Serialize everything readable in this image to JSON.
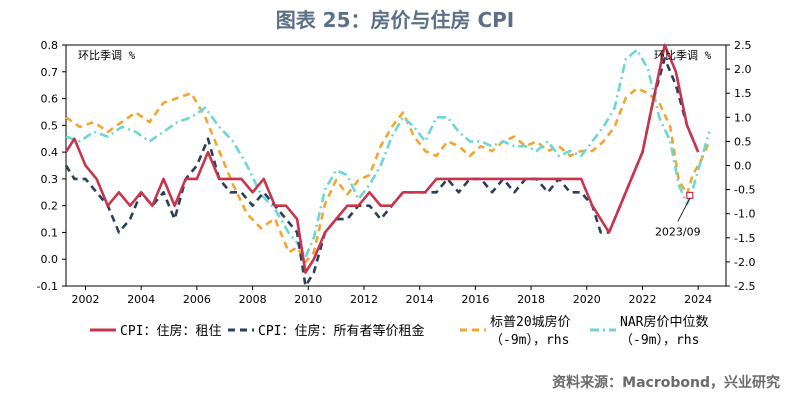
{
  "figure": {
    "title": "图表 25：房价与住房 CPI",
    "source": "资料来源：Macrobond，兴业研究",
    "colors": {
      "rent": "#c8354b",
      "owner_rent": "#2b3f5c",
      "case_shiller": "#f0a630",
      "nar": "#6ed6d6"
    }
  },
  "chart_data": {
    "type": "line",
    "title": "图表 25：房价与住房 CPI",
    "left_axis": {
      "label": "环比季调 %",
      "range": [
        -0.1,
        0.8
      ],
      "ticks": [
        "0.8",
        "0.7",
        "0.6",
        "0.5",
        "0.4",
        "0.3",
        "0.2",
        "0.1",
        "0.0",
        "-0.1"
      ]
    },
    "right_axis": {
      "label": "环比季调 %",
      "range": [
        -2.5,
        2.5
      ],
      "ticks": [
        "2.5",
        "2.0",
        "1.5",
        "1.0",
        "0.5",
        "0.0",
        "-0.5",
        "-1.0",
        "-1.5",
        "-2.0",
        "-2.5"
      ]
    },
    "x_axis": {
      "range": [
        2001.3,
        2025.0
      ],
      "ticks": [
        "2002",
        "2004",
        "2006",
        "2008",
        "2010",
        "2012",
        "2014",
        "2016",
        "2018",
        "2020",
        "2022",
        "2024"
      ]
    },
    "grid": false,
    "legend": "bottom",
    "annotation": {
      "text": "2023/09",
      "x": 2023.7,
      "y": -0.62,
      "axis": "right"
    },
    "series": [
      {
        "name": "CPI：住房：租住",
        "axis": "left",
        "style": "solid",
        "x": [
          2001.3,
          2001.6,
          2002.0,
          2002.4,
          2002.8,
          2003.2,
          2003.6,
          2004.0,
          2004.4,
          2004.8,
          2005.2,
          2005.6,
          2006.0,
          2006.4,
          2006.8,
          2007.2,
          2007.6,
          2008.0,
          2008.4,
          2008.8,
          2009.2,
          2009.6,
          2009.9,
          2010.2,
          2010.6,
          2011.0,
          2011.4,
          2011.8,
          2012.2,
          2012.6,
          2013.0,
          2013.4,
          2013.8,
          2014.2,
          2014.6,
          2015.0,
          2015.4,
          2015.8,
          2016.2,
          2016.6,
          2017.0,
          2017.4,
          2017.8,
          2018.2,
          2018.6,
          2019.0,
          2019.4,
          2019.8,
          2020.2,
          2020.5,
          2020.8,
          2021.2,
          2021.6,
          2022.0,
          2022.4,
          2022.8,
          2023.2,
          2023.6,
          2024.0
        ],
        "y": [
          0.4,
          0.45,
          0.35,
          0.3,
          0.2,
          0.25,
          0.2,
          0.25,
          0.2,
          0.3,
          0.2,
          0.3,
          0.3,
          0.4,
          0.3,
          0.3,
          0.3,
          0.25,
          0.3,
          0.2,
          0.2,
          0.15,
          -0.05,
          0.0,
          0.1,
          0.15,
          0.2,
          0.2,
          0.25,
          0.2,
          0.2,
          0.25,
          0.25,
          0.25,
          0.3,
          0.3,
          0.3,
          0.3,
          0.3,
          0.3,
          0.3,
          0.3,
          0.3,
          0.3,
          0.3,
          0.3,
          0.3,
          0.3,
          0.2,
          0.15,
          0.1,
          0.2,
          0.3,
          0.4,
          0.6,
          0.8,
          0.7,
          0.5,
          0.4
        ]
      },
      {
        "name": "CPI：住房：所有者等价租金",
        "axis": "left",
        "style": "dashed",
        "x": [
          2001.3,
          2001.6,
          2002.0,
          2002.4,
          2002.8,
          2003.2,
          2003.6,
          2004.0,
          2004.4,
          2004.8,
          2005.2,
          2005.6,
          2006.0,
          2006.4,
          2006.8,
          2007.2,
          2007.6,
          2008.0,
          2008.4,
          2008.8,
          2009.2,
          2009.6,
          2009.9,
          2010.2,
          2010.6,
          2011.0,
          2011.4,
          2011.8,
          2012.2,
          2012.6,
          2013.0,
          2013.4,
          2013.8,
          2014.2,
          2014.6,
          2015.0,
          2015.4,
          2015.8,
          2016.2,
          2016.6,
          2017.0,
          2017.4,
          2017.8,
          2018.2,
          2018.6,
          2019.0,
          2019.4,
          2019.8,
          2020.2,
          2020.5,
          2020.8,
          2021.2,
          2021.6,
          2022.0,
          2022.4,
          2022.8,
          2023.2,
          2023.6,
          2024.0
        ],
        "y": [
          0.35,
          0.3,
          0.3,
          0.25,
          0.2,
          0.1,
          0.15,
          0.25,
          0.2,
          0.25,
          0.15,
          0.3,
          0.35,
          0.45,
          0.3,
          0.25,
          0.25,
          0.2,
          0.25,
          0.2,
          0.15,
          0.1,
          -0.1,
          -0.05,
          0.1,
          0.15,
          0.15,
          0.2,
          0.2,
          0.15,
          0.2,
          0.25,
          0.25,
          0.25,
          0.25,
          0.3,
          0.25,
          0.3,
          0.3,
          0.25,
          0.3,
          0.25,
          0.3,
          0.3,
          0.25,
          0.3,
          0.25,
          0.25,
          0.2,
          0.1,
          0.1,
          0.2,
          0.3,
          0.4,
          0.6,
          0.75,
          0.65,
          0.5,
          0.4
        ]
      },
      {
        "name": "标普20城房价（-9m），rhs",
        "axis": "right",
        "style": "dashed",
        "x": [
          2001.3,
          2001.8,
          2002.3,
          2002.8,
          2003.3,
          2003.8,
          2004.3,
          2004.8,
          2005.3,
          2005.8,
          2006.3,
          2006.8,
          2007.3,
          2007.8,
          2008.3,
          2008.8,
          2009.3,
          2009.6,
          2009.9,
          2010.2,
          2010.6,
          2011.0,
          2011.4,
          2011.8,
          2012.2,
          2012.6,
          2013.0,
          2013.4,
          2013.8,
          2014.2,
          2014.6,
          2015.0,
          2015.4,
          2015.8,
          2016.2,
          2016.6,
          2017.0,
          2017.4,
          2017.8,
          2018.2,
          2018.6,
          2019.0,
          2019.4,
          2019.8,
          2020.2,
          2020.6,
          2021.0,
          2021.4,
          2021.8,
          2022.2,
          2022.6,
          2023.0,
          2023.3,
          2023.6,
          2023.8,
          2024.1,
          2024.4
        ],
        "y": [
          1.0,
          0.8,
          0.9,
          0.7,
          0.9,
          1.1,
          0.9,
          1.3,
          1.4,
          1.5,
          1.0,
          0.3,
          -0.4,
          -1.0,
          -1.3,
          -1.1,
          -1.8,
          -1.7,
          -2.0,
          -1.8,
          -0.8,
          -0.3,
          -0.6,
          -0.3,
          -0.2,
          0.4,
          0.8,
          1.1,
          0.6,
          0.3,
          0.2,
          0.5,
          0.4,
          0.2,
          0.4,
          0.3,
          0.5,
          0.6,
          0.4,
          0.5,
          0.3,
          0.4,
          0.2,
          0.3,
          0.3,
          0.5,
          0.8,
          1.4,
          1.6,
          1.5,
          1.3,
          0.8,
          -0.3,
          -0.6,
          -0.2,
          0.1,
          0.5
        ]
      },
      {
        "name": "NAR房价中位数（-9m），rhs",
        "axis": "right",
        "style": "dashdot",
        "x": [
          2001.3,
          2001.8,
          2002.3,
          2002.8,
          2003.3,
          2003.8,
          2004.3,
          2004.8,
          2005.3,
          2005.8,
          2006.3,
          2006.8,
          2007.3,
          2007.8,
          2008.3,
          2008.8,
          2009.3,
          2009.6,
          2009.9,
          2010.2,
          2010.6,
          2011.0,
          2011.4,
          2011.8,
          2012.2,
          2012.6,
          2013.0,
          2013.4,
          2013.8,
          2014.2,
          2014.6,
          2015.0,
          2015.4,
          2015.8,
          2016.2,
          2016.6,
          2017.0,
          2017.4,
          2017.8,
          2018.2,
          2018.6,
          2019.0,
          2019.4,
          2019.8,
          2020.2,
          2020.6,
          2021.0,
          2021.4,
          2021.8,
          2022.2,
          2022.6,
          2023.0,
          2023.3,
          2023.6,
          2023.8,
          2024.1,
          2024.4
        ],
        "y": [
          0.6,
          0.5,
          0.7,
          0.6,
          0.8,
          0.7,
          0.5,
          0.7,
          0.9,
          1.0,
          1.2,
          0.8,
          0.5,
          0.0,
          -0.6,
          -0.9,
          -1.4,
          -1.6,
          -1.9,
          -1.5,
          -0.5,
          -0.1,
          -0.2,
          -0.7,
          -0.4,
          0.0,
          0.6,
          1.0,
          0.8,
          0.5,
          1.0,
          1.0,
          0.7,
          0.5,
          0.5,
          0.4,
          0.5,
          0.4,
          0.4,
          0.3,
          0.5,
          0.2,
          0.3,
          0.2,
          0.5,
          0.8,
          1.2,
          2.2,
          2.4,
          2.0,
          1.0,
          0.5,
          -0.4,
          -0.8,
          -0.5,
          0.1,
          0.7
        ]
      }
    ]
  }
}
